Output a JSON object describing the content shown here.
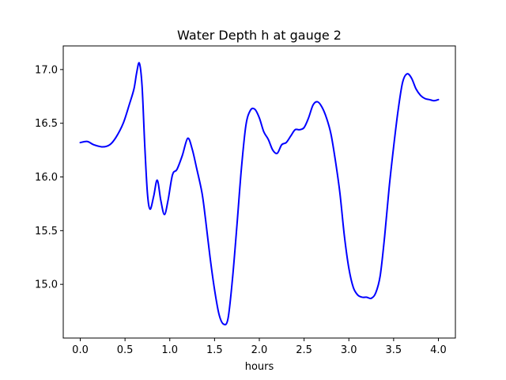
{
  "chart_data": {
    "type": "line",
    "title": "Water Depth h at gauge 2",
    "xlabel": "hours",
    "ylabel": "",
    "xlim": [
      -0.19,
      4.19
    ],
    "ylim": [
      14.5,
      17.22
    ],
    "x_ticks": [
      0.0,
      0.5,
      1.0,
      1.5,
      2.0,
      2.5,
      3.0,
      3.5,
      4.0
    ],
    "x_tick_labels": [
      "0.0",
      "0.5",
      "1.0",
      "1.5",
      "2.0",
      "2.5",
      "3.0",
      "3.5",
      "4.0"
    ],
    "y_ticks": [
      15.0,
      15.5,
      16.0,
      16.5,
      17.0
    ],
    "y_tick_labels": [
      "15.0",
      "15.5",
      "16.0",
      "16.5",
      "17.0"
    ],
    "grid": false,
    "legend": "none",
    "series": [
      {
        "color": "#0000ff",
        "x": [
          0.0,
          0.08,
          0.15,
          0.25,
          0.33,
          0.4,
          0.48,
          0.55,
          0.6,
          0.63,
          0.66,
          0.69,
          0.72,
          0.75,
          0.78,
          0.82,
          0.86,
          0.9,
          0.94,
          0.98,
          1.03,
          1.08,
          1.14,
          1.2,
          1.25,
          1.3,
          1.36,
          1.4,
          1.45,
          1.5,
          1.55,
          1.6,
          1.65,
          1.7,
          1.75,
          1.8,
          1.85,
          1.9,
          1.95,
          2.0,
          2.05,
          2.1,
          2.15,
          2.2,
          2.25,
          2.3,
          2.35,
          2.4,
          2.45,
          2.5,
          2.55,
          2.6,
          2.65,
          2.7,
          2.75,
          2.8,
          2.85,
          2.9,
          2.95,
          3.0,
          3.05,
          3.1,
          3.15,
          3.2,
          3.25,
          3.3,
          3.35,
          3.4,
          3.45,
          3.5,
          3.55,
          3.6,
          3.65,
          3.7,
          3.75,
          3.8,
          3.85,
          3.9,
          3.95,
          4.0
        ],
        "y": [
          16.32,
          16.33,
          16.3,
          16.28,
          16.3,
          16.37,
          16.5,
          16.68,
          16.82,
          16.97,
          17.06,
          16.85,
          16.3,
          15.85,
          15.7,
          15.82,
          15.97,
          15.78,
          15.65,
          15.78,
          16.02,
          16.07,
          16.2,
          16.36,
          16.26,
          16.08,
          15.85,
          15.6,
          15.25,
          14.95,
          14.72,
          14.63,
          14.68,
          15.05,
          15.55,
          16.08,
          16.48,
          16.62,
          16.63,
          16.55,
          16.42,
          16.35,
          16.25,
          16.22,
          16.3,
          16.32,
          16.38,
          16.44,
          16.44,
          16.46,
          16.55,
          16.67,
          16.7,
          16.65,
          16.55,
          16.4,
          16.15,
          15.85,
          15.45,
          15.15,
          14.97,
          14.9,
          14.88,
          14.88,
          14.87,
          14.92,
          15.08,
          15.45,
          15.9,
          16.28,
          16.62,
          16.88,
          16.96,
          16.92,
          16.82,
          16.76,
          16.73,
          16.72,
          16.71,
          16.72
        ]
      }
    ]
  }
}
